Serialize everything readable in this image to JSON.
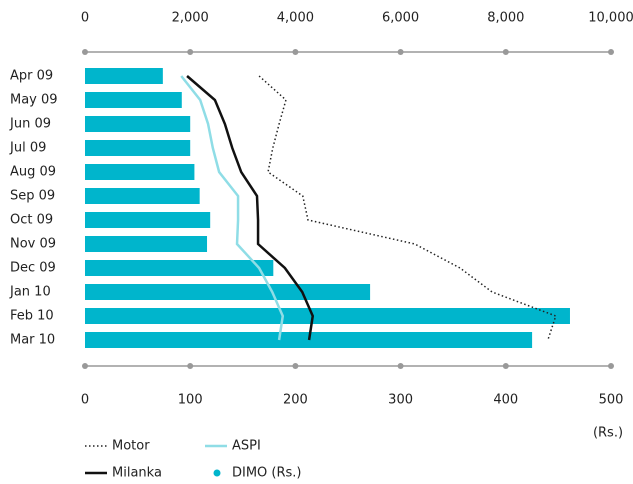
{
  "chart_data": {
    "type": "bar",
    "orientation": "horizontal",
    "categories": [
      "Apr 09",
      "May 09",
      "Jun 09",
      "Jul 09",
      "Aug 09",
      "Sep 09",
      "Oct 09",
      "Nov 09",
      "Dec 09",
      "Jan 10",
      "Feb 10",
      "Mar 10"
    ],
    "x_label": "(Rs.)",
    "xlim": [
      0,
      500
    ],
    "xticks": [
      0,
      100,
      200,
      300,
      400,
      500
    ],
    "x2lim": [
      0,
      10000
    ],
    "x2ticks": [
      0,
      {
        "value": 2000,
        "label": "2,000"
      },
      {
        "value": 4000,
        "label": "4,000"
      },
      {
        "value": 6000,
        "label": "6,000"
      },
      {
        "value": 8000,
        "label": "8,000"
      },
      {
        "value": 10000,
        "label": "10,000"
      }
    ],
    "series": [
      {
        "name": "Motor",
        "type": "line",
        "style": "dotted",
        "color": "#222222",
        "axis": "x2",
        "values": [
          3310,
          3820,
          3690,
          3570,
          3480,
          4140,
          4240,
          6270,
          7130,
          7740,
          8950,
          8800
        ]
      },
      {
        "name": "Milanka",
        "type": "line",
        "style": "solid",
        "color": "#111111",
        "axis": "x2",
        "values": [
          1940,
          2470,
          2660,
          2800,
          2970,
          3270,
          3290,
          3290,
          3800,
          4130,
          4330,
          4260
        ]
      },
      {
        "name": "ASPI",
        "type": "line",
        "style": "solid",
        "color": "#8fdde6",
        "axis": "x2",
        "values": [
          1830,
          2190,
          2340,
          2430,
          2550,
          2910,
          2910,
          2890,
          3310,
          3560,
          3760,
          3690
        ]
      },
      {
        "name": "DIMO (Rs.)",
        "type": "bar",
        "color": "#00b5cc",
        "axis": "x",
        "values": [
          74,
          92,
          100,
          100,
          104,
          109,
          119,
          116,
          179,
          271,
          461,
          425
        ]
      }
    ]
  }
}
